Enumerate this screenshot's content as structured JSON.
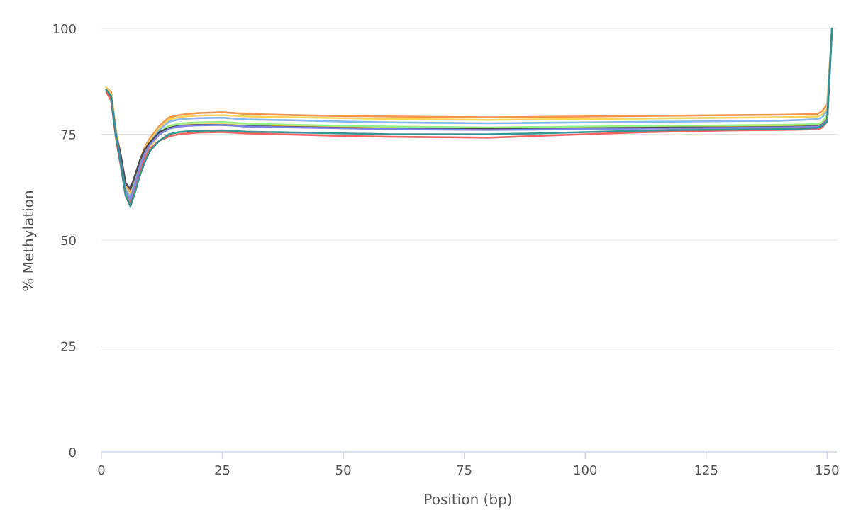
{
  "chart_data": {
    "type": "line",
    "title": "",
    "xlabel": "Position (bp)",
    "ylabel": "% Methylation",
    "xlim": [
      0,
      152
    ],
    "ylim": [
      0,
      100
    ],
    "xticks": [
      0,
      25,
      50,
      75,
      100,
      125,
      150
    ],
    "yticks": [
      0,
      25,
      50,
      75,
      100
    ],
    "grid": true,
    "legend": "none",
    "x": [
      1,
      2,
      3,
      4,
      5,
      6,
      7,
      8,
      9,
      10,
      12,
      14,
      16,
      18,
      20,
      25,
      30,
      40,
      50,
      60,
      70,
      80,
      90,
      100,
      110,
      120,
      130,
      140,
      145,
      148,
      149,
      150,
      151
    ],
    "series": [
      {
        "color": "#f28f43",
        "values": [
          86,
          85,
          76,
          70,
          63,
          61,
          65,
          69,
          72,
          74,
          77,
          79,
          79.5,
          79.8,
          80,
          80.2,
          79.8,
          79.5,
          79.3,
          79.2,
          79.1,
          79.0,
          79.1,
          79.2,
          79.3,
          79.4,
          79.5,
          79.6,
          79.7,
          79.8,
          80.5,
          82,
          100
        ]
      },
      {
        "color": "#f7d354",
        "values": [
          86,
          84.5,
          75.5,
          69.5,
          62.5,
          60.5,
          64.5,
          68.5,
          71.5,
          73.5,
          76.5,
          78.5,
          79,
          79.3,
          79.4,
          79.5,
          79.2,
          79.0,
          78.8,
          78.6,
          78.5,
          78.4,
          78.5,
          78.6,
          78.7,
          78.8,
          78.9,
          79.0,
          79.1,
          79.2,
          79.7,
          81,
          100
        ]
      },
      {
        "color": "#7cb5ec",
        "values": [
          85.5,
          84,
          75,
          69,
          62,
          60,
          64,
          68,
          71,
          73,
          76,
          78,
          78.5,
          78.7,
          78.8,
          78.9,
          78.5,
          78.3,
          78.0,
          77.8,
          77.7,
          77.6,
          77.7,
          77.8,
          77.9,
          78.0,
          78.1,
          78.2,
          78.4,
          78.6,
          79,
          80.5,
          100
        ]
      },
      {
        "color": "#90ed7d",
        "values": [
          85.5,
          84,
          75,
          68.5,
          61.5,
          59.5,
          63.5,
          67.5,
          70.5,
          72.5,
          75.5,
          77,
          77.5,
          77.7,
          77.8,
          77.9,
          77.5,
          77.2,
          77.0,
          76.8,
          76.7,
          76.6,
          76.7,
          76.8,
          76.9,
          77.0,
          77.1,
          77.2,
          77.3,
          77.4,
          77.8,
          79.5,
          100
        ]
      },
      {
        "color": "#e4d354",
        "values": [
          85,
          83.5,
          74.5,
          68,
          61,
          59,
          63,
          67,
          70,
          72,
          75,
          76.5,
          77,
          77.2,
          77.3,
          77.4,
          77.0,
          76.8,
          76.6,
          76.4,
          76.3,
          76.2,
          76.3,
          76.4,
          76.5,
          76.6,
          76.7,
          76.8,
          76.9,
          77.0,
          77.4,
          79,
          100
        ]
      },
      {
        "color": "#434348",
        "values": [
          85.5,
          84,
          75,
          70,
          63.5,
          62,
          65.5,
          69,
          71.5,
          73,
          75.5,
          76.5,
          77,
          77.1,
          77.2,
          77.2,
          76.9,
          76.7,
          76.5,
          76.3,
          76.2,
          76.2,
          76.3,
          76.4,
          76.5,
          76.6,
          76.6,
          76.7,
          76.8,
          76.9,
          77.3,
          78.5,
          100
        ]
      },
      {
        "color": "#f45b5b",
        "values": [
          85,
          83,
          74,
          67.5,
          60.5,
          58.5,
          62.5,
          66.5,
          69.5,
          71.5,
          73.5,
          74.5,
          75,
          75.2,
          75.4,
          75.5,
          75.2,
          74.9,
          74.6,
          74.4,
          74.3,
          74.2,
          74.6,
          75.0,
          75.4,
          75.7,
          75.9,
          76.0,
          76.1,
          76.2,
          76.6,
          78,
          100
        ]
      },
      {
        "color": "#8085e9",
        "values": [
          85.5,
          84,
          75,
          68.5,
          61.5,
          59.5,
          63.5,
          67.5,
          70.5,
          72.5,
          75,
          76.3,
          76.8,
          77,
          77.1,
          77.2,
          76.8,
          76.6,
          76.4,
          76.2,
          76.1,
          76.0,
          76.1,
          76.2,
          76.3,
          76.4,
          76.5,
          76.6,
          76.7,
          76.8,
          77.2,
          78.5,
          100
        ]
      },
      {
        "color": "#2b908f",
        "values": [
          85.5,
          84,
          74.5,
          68,
          60.5,
          58,
          61.5,
          65.5,
          68.5,
          71,
          73.5,
          75,
          75.5,
          75.7,
          75.8,
          75.9,
          75.6,
          75.4,
          75.2,
          75.0,
          75.0,
          75.0,
          75.2,
          75.5,
          75.8,
          76.0,
          76.1,
          76.2,
          76.3,
          76.5,
          77,
          78,
          100
        ]
      }
    ]
  }
}
